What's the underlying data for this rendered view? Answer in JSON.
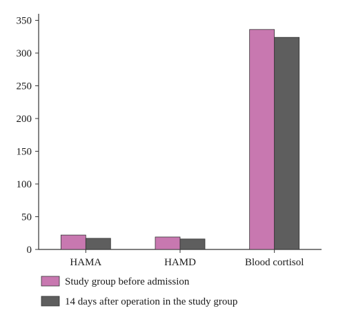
{
  "chart_data": {
    "type": "bar",
    "categories": [
      "HAMA",
      "HAMD",
      "Blood cortisol"
    ],
    "series": [
      {
        "name": "Study group before admission",
        "values": [
          22,
          19,
          336
        ],
        "color": "#c878b0"
      },
      {
        "name": "14 days after operation in the study group",
        "values": [
          17,
          16,
          324
        ],
        "color": "#5e5e5e"
      }
    ],
    "yticks": [
      0,
      50,
      100,
      150,
      200,
      250,
      300,
      350
    ],
    "ylim": [
      0,
      360
    ],
    "grid": false,
    "legend_position": "bottom-left"
  }
}
